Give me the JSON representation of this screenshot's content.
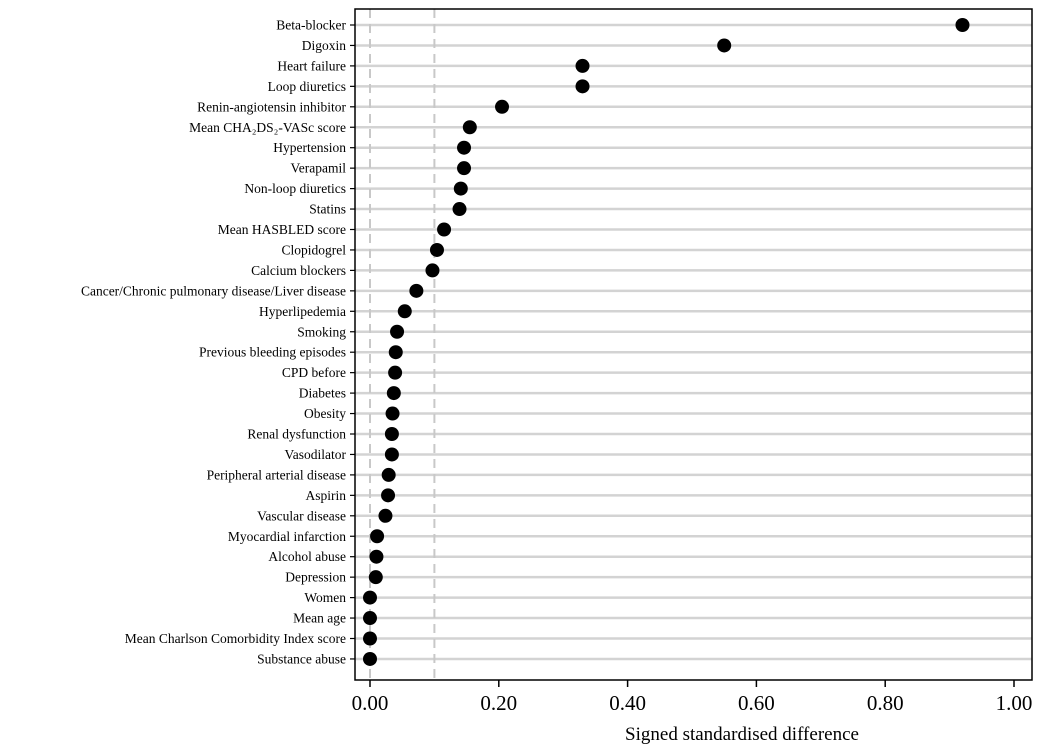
{
  "chart_data": {
    "type": "scatter",
    "orientation": "horizontal-dot-plot",
    "title": "",
    "xlabel": "Signed standardised difference",
    "ylabel": "",
    "xlim": [
      0,
      1
    ],
    "x_ticks": [
      0,
      0.2,
      0.4,
      0.6,
      0.8,
      1.0
    ],
    "x_tick_labels": [
      "0.00",
      "0.20",
      "0.40",
      "0.60",
      "0.80",
      "1.00"
    ],
    "reference_lines": [
      0,
      0.1
    ],
    "grid": "horizontal",
    "categories": [
      "Beta-blocker",
      "Digoxin",
      "Heart failure",
      "Loop diuretics",
      "Renin-angiotensin inhibitor",
      "Mean CHA₂DS₂-VASc score",
      "Hypertension",
      "Verapamil",
      "Non-loop diuretics",
      "Statins",
      "Mean HASBLED score",
      "Clopidogrel",
      "Calcium blockers",
      "Cancer/Chronic pulmonary disease/Liver disease",
      "Hyperlipedemia",
      "Smoking",
      "Previous bleeding episodes",
      "CPD before",
      "Diabetes",
      "Obesity",
      "Renal dysfunction",
      "Vasodilator",
      "Peripheral arterial disease",
      "Aspirin",
      "Vascular disease",
      "Myocardial infarction",
      "Alcohol abuse",
      "Depression",
      "Women",
      "Mean age",
      "Mean Charlson Comorbidity Index score",
      "Substance abuse"
    ],
    "values": [
      0.92,
      0.55,
      0.33,
      0.33,
      0.205,
      0.155,
      0.146,
      0.146,
      0.141,
      0.139,
      0.115,
      0.104,
      0.097,
      0.072,
      0.054,
      0.042,
      0.04,
      0.039,
      0.037,
      0.035,
      0.034,
      0.034,
      0.029,
      0.028,
      0.024,
      0.011,
      0.01,
      0.009,
      0.0,
      0.0,
      0.0,
      0.0
    ],
    "colors": {
      "marker": "#000000",
      "gridline": "#d3d3d3",
      "reference_line": "#c8c8c8",
      "frame": "#000000"
    }
  }
}
